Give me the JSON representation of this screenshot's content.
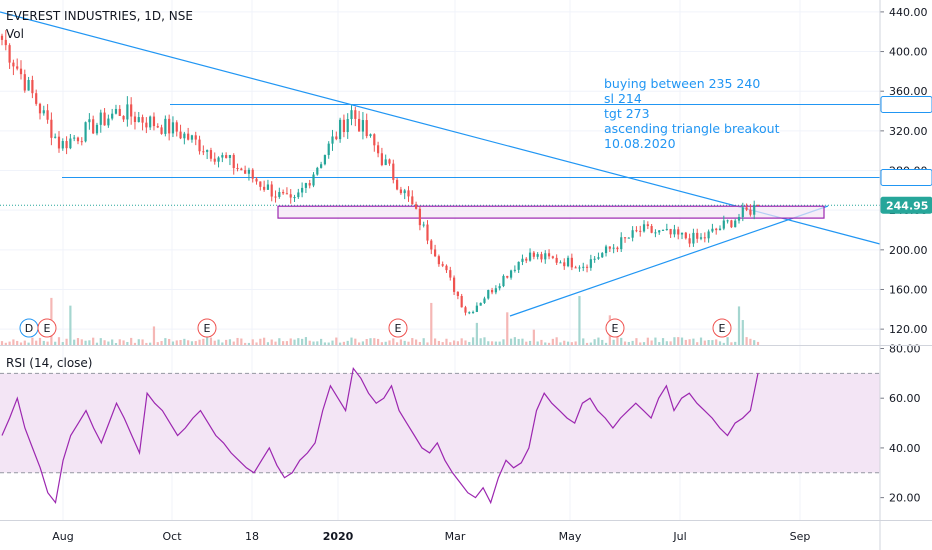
{
  "header": {
    "symbol": "EVEREST INDUSTRIES, 1D, NSE",
    "vol_label": "Vol",
    "rsi_label": "RSI (14, close)"
  },
  "annotation": {
    "lines": [
      "buying between 235 240",
      "sl 214",
      "tgt 273",
      "ascending triangle breakout",
      "10.08.2020"
    ]
  },
  "colors": {
    "up": "#26a69a",
    "down": "#ef5350",
    "trend": "#2196f3",
    "zone": "#9c27b0",
    "rsi_line": "#9c27b0",
    "rsi_band": "#f3e5f5",
    "price_tag": "#26a69a"
  },
  "price_tags": [
    {
      "label": "346.55",
      "value": 346.55,
      "style": "outline"
    },
    {
      "label": "273.00",
      "value": 273.0,
      "style": "outline"
    },
    {
      "label": "244.95",
      "value": 244.95,
      "style": "filled"
    }
  ],
  "event_markers": [
    "D",
    "E",
    "E",
    "E",
    "E",
    "E"
  ],
  "chart_data": [
    {
      "type": "candlestick",
      "title": "EVEREST INDUSTRIES, 1D, NSE",
      "x_ticks": [
        "Aug",
        "Oct",
        "18",
        "2020",
        "Mar",
        "May",
        "Jul",
        "Sep"
      ],
      "y_ticks": [
        120,
        160,
        200,
        240,
        280,
        320,
        360,
        400,
        440
      ],
      "y_tick_labels": [
        "120.00",
        "160.00",
        "200.00",
        "240.00",
        "280.00",
        "320.00",
        "360.00",
        "400.00",
        "440.00"
      ],
      "ylim": [
        104,
        452
      ],
      "key_levels": [
        346.55,
        273.0,
        244.95
      ],
      "approx_close_path": [
        {
          "date": "Jul 2019",
          "close": 412
        },
        {
          "date": "Aug 2019",
          "close": 305
        },
        {
          "date": "Sep 2019",
          "close": 340
        },
        {
          "date": "Oct 2019",
          "close": 320
        },
        {
          "date": "Nov 2019",
          "close": 285
        },
        {
          "date": "Dec 2019",
          "close": 245
        },
        {
          "date": "Jan 2020",
          "close": 340
        },
        {
          "date": "Feb 2020",
          "close": 250
        },
        {
          "date": "Mar 2020",
          "close": 135
        },
        {
          "date": "Apr 2020",
          "close": 195
        },
        {
          "date": "May 2020",
          "close": 185
        },
        {
          "date": "Jun 2020",
          "close": 220
        },
        {
          "date": "Jul 2020",
          "close": 210
        },
        {
          "date": "Aug 2020",
          "close": 245
        }
      ]
    },
    {
      "type": "line",
      "title": "RSI (14, close)",
      "y_ticks": [
        20,
        40,
        60,
        80
      ],
      "y_tick_labels": [
        "20.00",
        "40.00",
        "60.00",
        "80.00"
      ],
      "ylim": [
        11,
        81
      ],
      "bands": [
        30,
        70
      ],
      "values": [
        45,
        52,
        60,
        48,
        40,
        32,
        22,
        18,
        35,
        45,
        50,
        55,
        48,
        42,
        50,
        58,
        52,
        45,
        38,
        62,
        58,
        55,
        50,
        45,
        48,
        52,
        55,
        50,
        45,
        42,
        38,
        35,
        32,
        30,
        35,
        40,
        33,
        28,
        30,
        35,
        38,
        42,
        55,
        65,
        60,
        55,
        72,
        68,
        62,
        58,
        60,
        65,
        55,
        50,
        45,
        40,
        38,
        42,
        35,
        30,
        26,
        22,
        20,
        24,
        18,
        28,
        35,
        32,
        34,
        40,
        55,
        62,
        58,
        55,
        52,
        50,
        58,
        60,
        55,
        52,
        48,
        52,
        55,
        58,
        55,
        52,
        60,
        65,
        55,
        60,
        62,
        58,
        55,
        52,
        48,
        45,
        50,
        52,
        55,
        70
      ]
    }
  ]
}
